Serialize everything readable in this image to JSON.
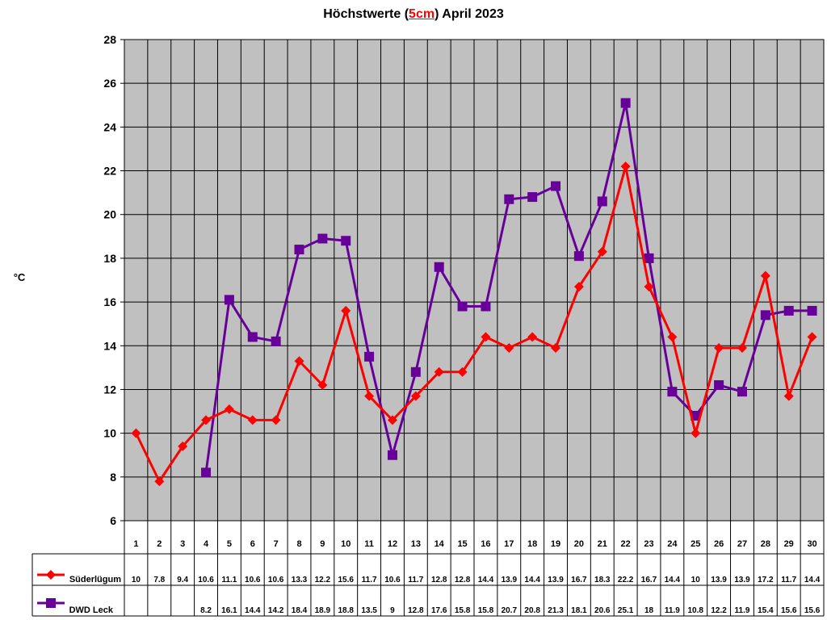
{
  "chart_data": {
    "type": "line",
    "title": "Höchstwerte (5cm) April 2023",
    "title_parts": [
      "Höchstwerte (",
      "5cm",
      ") April 2023"
    ],
    "xlabel": "",
    "ylabel": "°C",
    "ylim": [
      6,
      28
    ],
    "yticks": [
      6,
      8,
      10,
      12,
      14,
      16,
      18,
      20,
      22,
      24,
      26,
      28
    ],
    "grid": true,
    "plot_background": "#c0c0c0",
    "categories": [
      "1",
      "2",
      "3",
      "4",
      "5",
      "6",
      "7",
      "8",
      "9",
      "10",
      "11",
      "12",
      "13",
      "14",
      "15",
      "16",
      "17",
      "18",
      "19",
      "20",
      "21",
      "22",
      "23",
      "24",
      "25",
      "26",
      "27",
      "28",
      "29",
      "30"
    ],
    "series": [
      {
        "name": "Süderlügum",
        "color": "#ff0000",
        "marker": "diamond",
        "values": [
          10,
          7.8,
          9.4,
          10.6,
          11.1,
          10.6,
          10.6,
          13.3,
          12.2,
          15.6,
          11.7,
          10.6,
          11.7,
          12.8,
          12.8,
          14.4,
          13.9,
          14.4,
          13.9,
          16.7,
          18.3,
          22.2,
          16.7,
          14.4,
          10,
          13.9,
          13.9,
          17.2,
          11.7,
          14.4
        ]
      },
      {
        "name": "DWD Leck",
        "color": "#660099",
        "marker": "square",
        "values": [
          null,
          null,
          null,
          8.2,
          16.1,
          14.4,
          14.2,
          18.4,
          18.9,
          18.8,
          13.5,
          9,
          12.8,
          17.6,
          15.8,
          15.8,
          20.7,
          20.8,
          21.3,
          18.1,
          20.6,
          25.1,
          18,
          11.9,
          10.8,
          12.2,
          11.9,
          15.4,
          15.6,
          15.6
        ]
      }
    ]
  }
}
